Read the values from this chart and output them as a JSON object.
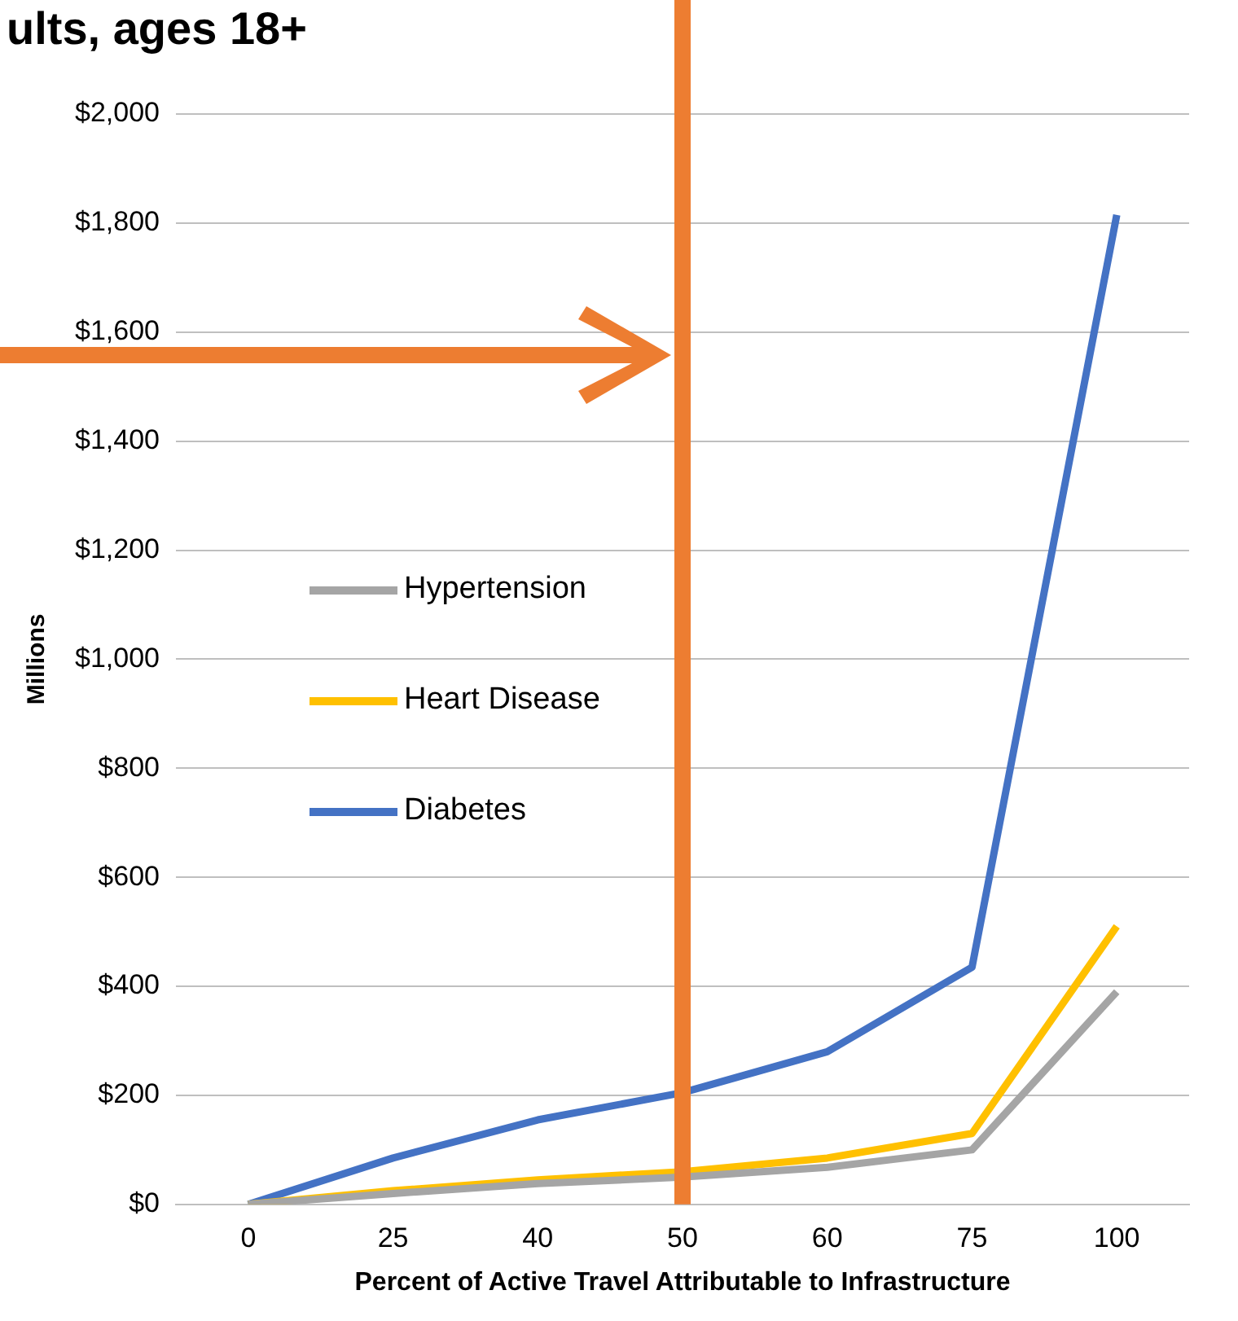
{
  "chart_data": {
    "type": "line",
    "title": "ults, ages 18+",
    "xlabel": "Percent of Active Travel Attributable to Infrastructure",
    "ylabel": "Millions",
    "categories": [
      "0",
      "25",
      "40",
      "50",
      "60",
      "75",
      "100"
    ],
    "series": [
      {
        "name": "Hypertension",
        "color": "#a5a5a5",
        "values": [
          0,
          20,
          38,
          50,
          68,
          100,
          390
        ]
      },
      {
        "name": "Heart Disease",
        "color": "#ffc000",
        "values": [
          0,
          25,
          45,
          60,
          85,
          130,
          510
        ]
      },
      {
        "name": "Diabetes",
        "color": "#4472c4",
        "values": [
          0,
          85,
          155,
          205,
          280,
          435,
          1815
        ]
      }
    ],
    "ylim": [
      0,
      2000
    ],
    "yticks": [
      {
        "value": 0,
        "label": "$0"
      },
      {
        "value": 200,
        "label": "$200"
      },
      {
        "value": 400,
        "label": "$400"
      },
      {
        "value": 600,
        "label": "$600"
      },
      {
        "value": 800,
        "label": "$800"
      },
      {
        "value": 1000,
        "label": "$1,000"
      },
      {
        "value": 1200,
        "label": "$1,200"
      },
      {
        "value": 1400,
        "label": "$1,400"
      },
      {
        "value": 1600,
        "label": "$1,600"
      },
      {
        "value": 1800,
        "label": "$1,800"
      },
      {
        "value": 2000,
        "label": "$2,000"
      }
    ],
    "grid": "y",
    "legend": "left",
    "marker": "none",
    "line_style": "solid",
    "ref_lines": [
      {
        "axis": "x",
        "value": "50",
        "color": "#ed7d31"
      }
    ]
  }
}
